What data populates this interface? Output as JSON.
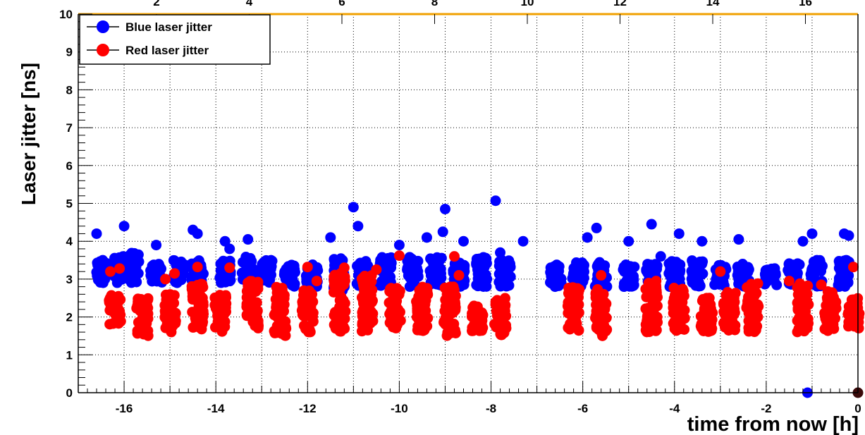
{
  "chart_data": {
    "type": "scatter",
    "title": "",
    "xlabel": "time from now [h]",
    "ylabel": "Laser jitter [ns]",
    "xlim": [
      -17,
      0
    ],
    "ylim": [
      0,
      10
    ],
    "x_ticks": [
      "-16",
      "-14",
      "-12",
      "-10",
      "-8",
      "-6",
      "-4",
      "-2",
      "0"
    ],
    "y_ticks": [
      "0",
      "1",
      "2",
      "3",
      "4",
      "5",
      "6",
      "7",
      "8",
      "9",
      "10"
    ],
    "top_axis_ticks": [
      "2",
      "4",
      "6",
      "8",
      "10",
      "12",
      "14",
      "16"
    ],
    "grid": true,
    "legend_position": "top-left",
    "series": [
      {
        "name": "Blue laser jitter",
        "color": "#0000ff",
        "clusters": [
          {
            "x": -16.5,
            "y_min": 2.9,
            "y_max": 3.5
          },
          {
            "x": -16.1,
            "y_min": 2.9,
            "y_max": 3.6
          },
          {
            "x": -15.8,
            "y_min": 2.9,
            "y_max": 3.7
          },
          {
            "x": -15.3,
            "y_min": 2.9,
            "y_max": 3.4
          },
          {
            "x": -14.8,
            "y_min": 2.9,
            "y_max": 3.5
          },
          {
            "x": -14.4,
            "y_min": 2.9,
            "y_max": 3.5
          },
          {
            "x": -13.8,
            "y_min": 2.9,
            "y_max": 3.5
          },
          {
            "x": -13.3,
            "y_min": 2.9,
            "y_max": 3.6
          },
          {
            "x": -12.9,
            "y_min": 2.9,
            "y_max": 3.5
          },
          {
            "x": -12.4,
            "y_min": 2.8,
            "y_max": 3.4
          },
          {
            "x": -11.9,
            "y_min": 2.8,
            "y_max": 3.4
          },
          {
            "x": -11.3,
            "y_min": 2.7,
            "y_max": 3.6
          },
          {
            "x": -10.8,
            "y_min": 2.8,
            "y_max": 3.5
          },
          {
            "x": -10.3,
            "y_min": 2.8,
            "y_max": 3.6
          },
          {
            "x": -9.7,
            "y_min": 2.8,
            "y_max": 3.6
          },
          {
            "x": -9.2,
            "y_min": 2.8,
            "y_max": 3.6
          },
          {
            "x": -8.7,
            "y_min": 2.8,
            "y_max": 3.5
          },
          {
            "x": -8.2,
            "y_min": 2.8,
            "y_max": 3.6
          },
          {
            "x": -7.7,
            "y_min": 2.8,
            "y_max": 3.5
          },
          {
            "x": -6.6,
            "y_min": 2.8,
            "y_max": 3.4
          },
          {
            "x": -6.1,
            "y_min": 2.8,
            "y_max": 3.5
          },
          {
            "x": -5.6,
            "y_min": 2.8,
            "y_max": 3.5
          },
          {
            "x": -5.0,
            "y_min": 2.8,
            "y_max": 3.4
          },
          {
            "x": -4.5,
            "y_min": 2.8,
            "y_max": 3.4
          },
          {
            "x": -4.0,
            "y_min": 2.8,
            "y_max": 3.5
          },
          {
            "x": -3.5,
            "y_min": 2.8,
            "y_max": 3.5
          },
          {
            "x": -3.0,
            "y_min": 2.8,
            "y_max": 3.4
          },
          {
            "x": -2.5,
            "y_min": 2.8,
            "y_max": 3.4
          },
          {
            "x": -1.9,
            "y_min": 2.8,
            "y_max": 3.3
          },
          {
            "x": -1.4,
            "y_min": 2.8,
            "y_max": 3.5
          },
          {
            "x": -0.9,
            "y_min": 2.8,
            "y_max": 3.5
          },
          {
            "x": -0.3,
            "y_min": 2.8,
            "y_max": 3.5
          }
        ],
        "outliers": [
          {
            "x": -16.6,
            "y": 4.2
          },
          {
            "x": -16.0,
            "y": 4.4
          },
          {
            "x": -15.3,
            "y": 3.9
          },
          {
            "x": -14.5,
            "y": 4.3
          },
          {
            "x": -14.4,
            "y": 4.2
          },
          {
            "x": -13.8,
            "y": 4.0
          },
          {
            "x": -13.7,
            "y": 3.8
          },
          {
            "x": -13.3,
            "y": 4.05
          },
          {
            "x": -11.5,
            "y": 4.1
          },
          {
            "x": -11.0,
            "y": 4.9
          },
          {
            "x": -10.9,
            "y": 4.4
          },
          {
            "x": -10.0,
            "y": 3.9
          },
          {
            "x": -9.4,
            "y": 4.1
          },
          {
            "x": -9.0,
            "y": 4.85
          },
          {
            "x": -9.05,
            "y": 4.25
          },
          {
            "x": -8.6,
            "y": 4.0
          },
          {
            "x": -7.9,
            "y": 5.07
          },
          {
            "x": -7.8,
            "y": 3.7
          },
          {
            "x": -7.3,
            "y": 4.0
          },
          {
            "x": -5.9,
            "y": 4.1
          },
          {
            "x": -5.7,
            "y": 4.35
          },
          {
            "x": -5.0,
            "y": 4.0
          },
          {
            "x": -4.5,
            "y": 4.45
          },
          {
            "x": -4.3,
            "y": 3.6
          },
          {
            "x": -3.9,
            "y": 4.2
          },
          {
            "x": -3.4,
            "y": 4.0
          },
          {
            "x": -2.6,
            "y": 4.05
          },
          {
            "x": -1.2,
            "y": 4.0
          },
          {
            "x": -1.0,
            "y": 4.2
          },
          {
            "x": -0.3,
            "y": 4.2
          },
          {
            "x": -0.2,
            "y": 4.15
          },
          {
            "x": -1.1,
            "y": 0.0
          }
        ]
      },
      {
        "name": "Red laser jitter",
        "color": "#ff0000",
        "clusters": [
          {
            "x": -16.2,
            "y_min": 1.8,
            "y_max": 2.6
          },
          {
            "x": -15.6,
            "y_min": 1.5,
            "y_max": 2.5
          },
          {
            "x": -15.0,
            "y_min": 1.6,
            "y_max": 2.6
          },
          {
            "x": -14.4,
            "y_min": 1.6,
            "y_max": 3.0
          },
          {
            "x": -13.9,
            "y_min": 1.6,
            "y_max": 2.6
          },
          {
            "x": -13.2,
            "y_min": 1.7,
            "y_max": 3.0
          },
          {
            "x": -12.6,
            "y_min": 1.5,
            "y_max": 2.8
          },
          {
            "x": -12.0,
            "y_min": 1.6,
            "y_max": 2.7
          },
          {
            "x": -11.3,
            "y_min": 1.6,
            "y_max": 3.2
          },
          {
            "x": -10.7,
            "y_min": 1.6,
            "y_max": 3.1
          },
          {
            "x": -10.1,
            "y_min": 1.7,
            "y_max": 2.8
          },
          {
            "x": -9.5,
            "y_min": 1.6,
            "y_max": 2.8
          },
          {
            "x": -8.9,
            "y_min": 1.5,
            "y_max": 2.8
          },
          {
            "x": -8.3,
            "y_min": 1.6,
            "y_max": 2.3
          },
          {
            "x": -7.8,
            "y_min": 1.5,
            "y_max": 2.5
          },
          {
            "x": -6.2,
            "y_min": 1.6,
            "y_max": 2.8
          },
          {
            "x": -5.6,
            "y_min": 1.5,
            "y_max": 2.8
          },
          {
            "x": -4.5,
            "y_min": 1.6,
            "y_max": 2.9
          },
          {
            "x": -3.9,
            "y_min": 1.6,
            "y_max": 2.8
          },
          {
            "x": -3.3,
            "y_min": 1.6,
            "y_max": 2.5
          },
          {
            "x": -2.8,
            "y_min": 1.6,
            "y_max": 2.7
          },
          {
            "x": -2.3,
            "y_min": 1.6,
            "y_max": 2.9
          },
          {
            "x": -1.2,
            "y_min": 1.6,
            "y_max": 2.9
          },
          {
            "x": -0.6,
            "y_min": 1.6,
            "y_max": 2.7
          },
          {
            "x": -0.1,
            "y_min": 1.7,
            "y_max": 2.5
          }
        ],
        "outliers": [
          {
            "x": -16.3,
            "y": 3.2
          },
          {
            "x": -16.1,
            "y": 3.28
          },
          {
            "x": -15.1,
            "y": 3.0
          },
          {
            "x": -14.9,
            "y": 3.15
          },
          {
            "x": -14.4,
            "y": 3.32
          },
          {
            "x": -13.7,
            "y": 3.3
          },
          {
            "x": -13.1,
            "y": 2.9
          },
          {
            "x": -12.0,
            "y": 3.32
          },
          {
            "x": -11.8,
            "y": 2.95
          },
          {
            "x": -11.2,
            "y": 3.3
          },
          {
            "x": -10.5,
            "y": 3.25
          },
          {
            "x": -10.0,
            "y": 3.62
          },
          {
            "x": -8.8,
            "y": 3.6
          },
          {
            "x": -8.7,
            "y": 3.1
          },
          {
            "x": -5.6,
            "y": 3.1
          },
          {
            "x": -4.4,
            "y": 2.95
          },
          {
            "x": -3.0,
            "y": 3.2
          },
          {
            "x": -1.5,
            "y": 2.95
          },
          {
            "x": -0.8,
            "y": 2.85
          },
          {
            "x": -0.1,
            "y": 3.32
          }
        ]
      }
    ],
    "extra_points": [
      {
        "x": 0.0,
        "y": 0.0,
        "color": "#3a0a0a"
      }
    ]
  }
}
